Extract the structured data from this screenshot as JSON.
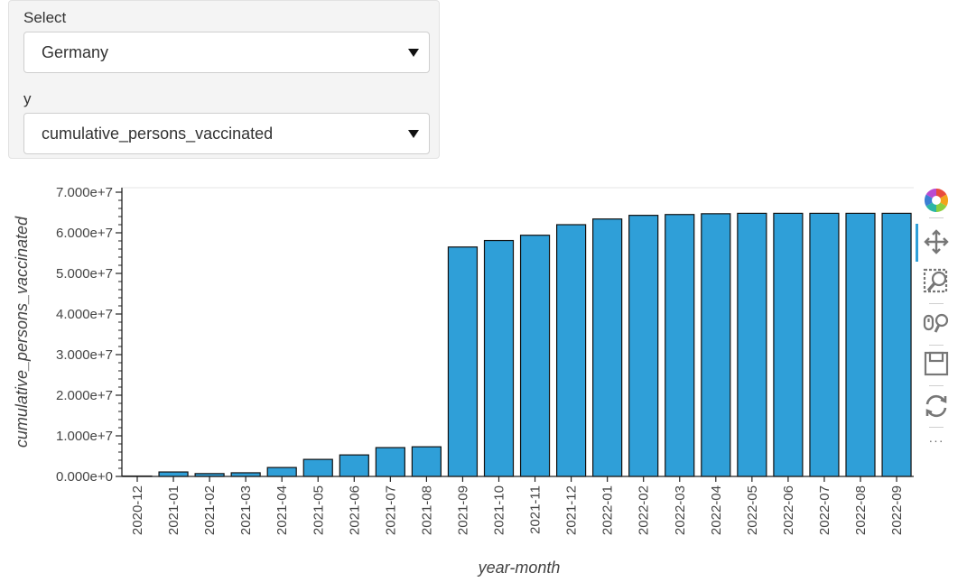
{
  "controls": {
    "select_label": "Select",
    "select_value": "Germany",
    "y_label": "y",
    "y_value": "cumulative_persons_vaccinated"
  },
  "toolbar": {
    "tools": [
      "bokeh-logo-icon",
      "pan-icon",
      "box-zoom-icon",
      "wheel-zoom-icon",
      "save-icon",
      "reset-icon",
      "more-icon"
    ],
    "more_label": "···",
    "active_color": "#2f9fd8"
  },
  "chart_data": {
    "type": "bar",
    "xlabel": "year-month",
    "ylabel": "cumulative_persons_vaccinated",
    "bar_color": "#2f9fd8",
    "ylim": [
      0,
      70000000
    ],
    "yticks": [
      "0.000e+0",
      "1.000e+7",
      "2.000e+7",
      "3.000e+7",
      "4.000e+7",
      "5.000e+7",
      "6.000e+7",
      "7.000e+7"
    ],
    "categories": [
      "2020-12",
      "2021-01",
      "2021-02",
      "2021-03",
      "2021-04",
      "2021-05",
      "2021-06",
      "2021-07",
      "2021-08",
      "2021-09",
      "2021-10",
      "2021-11",
      "2021-12",
      "2022-01",
      "2022-02",
      "2022-03",
      "2022-04",
      "2022-05",
      "2022-06",
      "2022-07",
      "2022-08",
      "2022-09"
    ],
    "values": [
      100000,
      1100000,
      700000,
      900000,
      2200000,
      4200000,
      5300000,
      7100000,
      7300000,
      56500000,
      58100000,
      59400000,
      62000000,
      63400000,
      64300000,
      64500000,
      64700000,
      64800000,
      64800000,
      64800000,
      64800000,
      64800000
    ]
  }
}
